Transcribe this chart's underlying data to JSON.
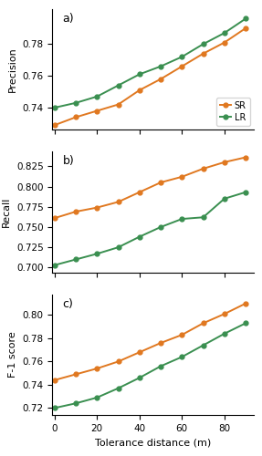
{
  "x": [
    0,
    10,
    20,
    30,
    40,
    50,
    60,
    70,
    80,
    90
  ],
  "precision_SR": [
    0.729,
    0.734,
    0.738,
    0.742,
    0.751,
    0.758,
    0.766,
    0.774,
    0.781,
    0.79
  ],
  "precision_LR": [
    0.74,
    0.743,
    0.747,
    0.754,
    0.761,
    0.766,
    0.772,
    0.78,
    0.787,
    0.796
  ],
  "recall_SR": [
    0.761,
    0.769,
    0.774,
    0.781,
    0.793,
    0.805,
    0.812,
    0.822,
    0.83,
    0.836
  ],
  "recall_LR": [
    0.703,
    0.71,
    0.717,
    0.725,
    0.738,
    0.75,
    0.76,
    0.762,
    0.785,
    0.793
  ],
  "f1_SR": [
    0.744,
    0.749,
    0.754,
    0.76,
    0.768,
    0.776,
    0.783,
    0.793,
    0.801,
    0.81
  ],
  "f1_LR": [
    0.72,
    0.724,
    0.729,
    0.737,
    0.746,
    0.756,
    0.764,
    0.774,
    0.784,
    0.793
  ],
  "color_SR": "#E07820",
  "color_LR": "#3A8F50",
  "xlabel": "Tolerance distance (m)",
  "ylabel_a": "Precision",
  "ylabel_b": "Recall",
  "ylabel_c": "F-1 score",
  "label_SR": "SR",
  "label_LR": "LR",
  "ylim_a": [
    0.726,
    0.802
  ],
  "ylim_b": [
    0.694,
    0.843
  ],
  "ylim_c": [
    0.714,
    0.818
  ],
  "yticks_a": [
    0.74,
    0.76,
    0.78
  ],
  "yticks_b": [
    0.7,
    0.725,
    0.75,
    0.775,
    0.8,
    0.825
  ],
  "yticks_c": [
    0.72,
    0.74,
    0.76,
    0.78,
    0.8
  ],
  "xticks": [
    0,
    20,
    40,
    60,
    80
  ]
}
